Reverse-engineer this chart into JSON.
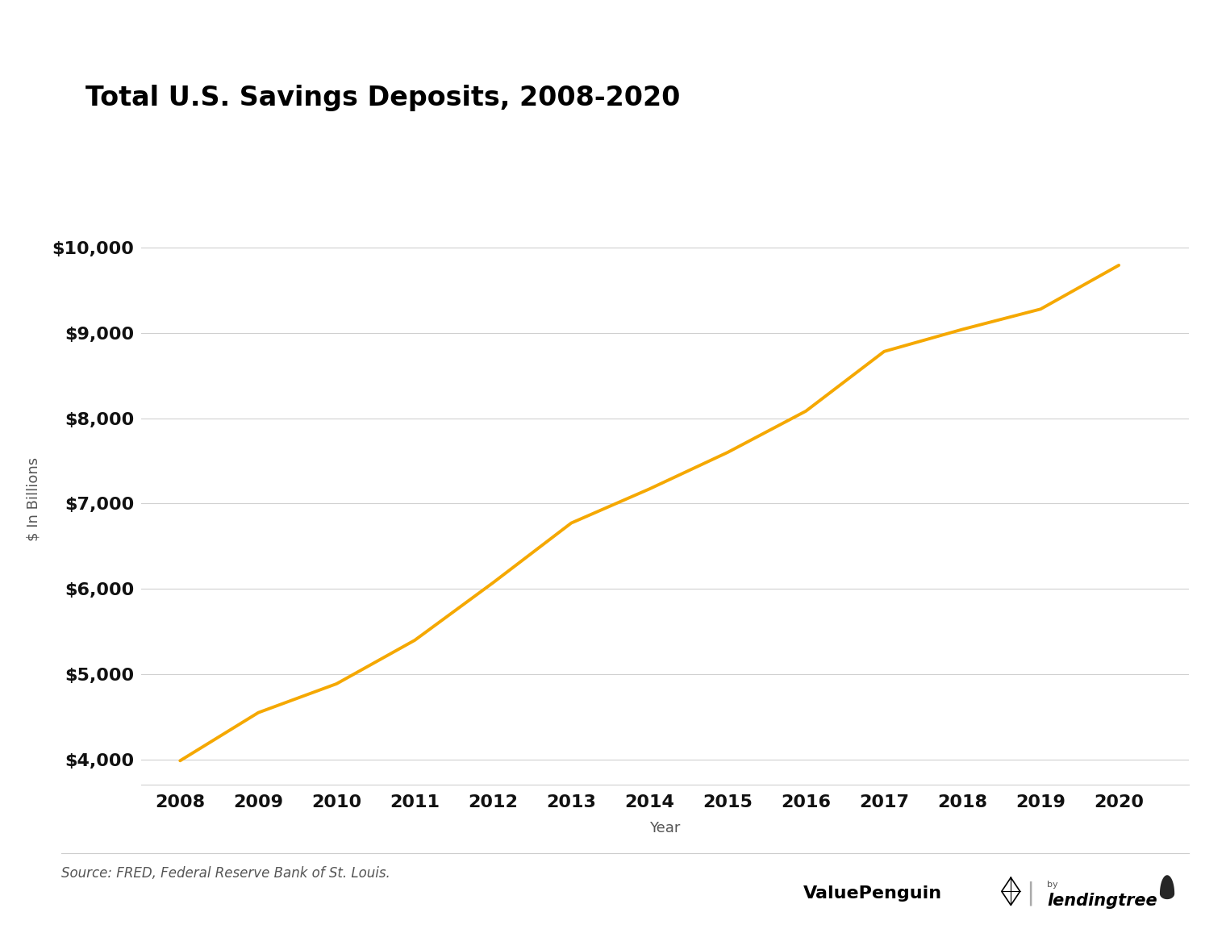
{
  "title": "Total U.S. Savings Deposits, 2008-2020",
  "xlabel": "Year",
  "ylabel": "$ In Billions",
  "years": [
    2008,
    2009,
    2010,
    2011,
    2012,
    2013,
    2014,
    2015,
    2016,
    2017,
    2018,
    2019,
    2020
  ],
  "values": [
    3985,
    4549,
    4887,
    5398,
    6072,
    6772,
    7172,
    7601,
    8085,
    8784,
    9043,
    9281,
    9795
  ],
  "line_color": "#F5A800",
  "line_width": 2.8,
  "ylim_low": 3700,
  "ylim_high": 10400,
  "yticks": [
    4000,
    5000,
    6000,
    7000,
    8000,
    9000,
    10000
  ],
  "background_color": "#ffffff",
  "grid_color": "#d0d0d0",
  "title_fontsize": 24,
  "axis_label_fontsize": 13,
  "tick_fontsize": 16,
  "tick_fontweight": "bold",
  "source_text": "Source: FRED, Federal Reserve Bank of St. Louis.",
  "source_fontsize": 12
}
